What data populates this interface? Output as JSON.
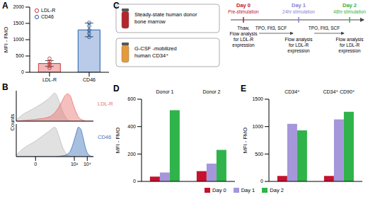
{
  "chart_data": [
    {
      "panel": "A",
      "type": "bar",
      "categories": [
        "LDL-R",
        "CD46"
      ],
      "values": [
        270,
        1300
      ],
      "error": [
        90,
        210
      ],
      "points": [
        [
          130,
          190,
          260,
          330,
          420
        ],
        [
          1080,
          1190,
          1290,
          1420,
          1520
        ]
      ],
      "colors": [
        "#f3b8b8",
        "#b9cbe8"
      ],
      "y_label": "MFI - FMO",
      "ylim": [
        0,
        2000
      ],
      "yticks": [
        0,
        500,
        1000,
        1500,
        2000
      ],
      "legend": "upper left"
    },
    {
      "panel": "B",
      "type": "area",
      "y_label": "Counts",
      "x": [
        -30,
        -10,
        0,
        10,
        30,
        60,
        100,
        200,
        300,
        500,
        700,
        1000,
        1500,
        2000,
        3000,
        5000,
        7000,
        10000,
        15000,
        20000,
        30000
      ],
      "xlim": [
        -30,
        30000
      ],
      "xticks": [
        {
          "value": 0,
          "label": "0"
        },
        {
          "value": 1000,
          "label": "10³"
        },
        {
          "value": 10000,
          "label": "10⁴"
        }
      ],
      "ylim": [
        0,
        100
      ],
      "tick_labels": "x",
      "subplots": [
        {
          "title": "LDL-R",
          "series": [
            {
              "color": "#bdbdbd",
              "values": [
                4,
                20,
                45,
                75,
                92,
                70,
                42,
                14,
                5,
                1,
                0,
                0,
                0,
                0,
                0,
                0,
                0,
                0,
                0,
                0,
                0
              ]
            },
            {
              "color": "#e8706f",
              "values": [
                0,
                2,
                6,
                14,
                28,
                45,
                62,
                85,
                90,
                82,
                64,
                44,
                26,
                15,
                7,
                3,
                1,
                0,
                0,
                0,
                0
              ]
            }
          ]
        },
        {
          "title": "CD46",
          "series": [
            {
              "color": "#bdbdbd",
              "values": [
                5,
                22,
                48,
                78,
                90,
                66,
                38,
                12,
                4,
                1,
                0,
                0,
                0,
                0,
                0,
                0,
                0,
                0,
                0,
                0,
                0
              ]
            },
            {
              "color": "#3f74b8",
              "values": [
                0,
                0,
                0,
                0,
                0,
                1,
                2,
                4,
                8,
                18,
                32,
                52,
                76,
                90,
                86,
                55,
                30,
                12,
                4,
                1,
                0
              ]
            }
          ]
        }
      ]
    },
    {
      "panel": "D",
      "type": "bar",
      "categories": [
        "Donor 1",
        "Donor 2"
      ],
      "series": [
        {
          "name": "Day 0",
          "color": "#c4122f",
          "values": [
            35,
            75
          ]
        },
        {
          "name": "Day 1",
          "color": "#a597da",
          "values": [
            65,
            130
          ]
        },
        {
          "name": "Day 2",
          "color": "#2fb34a",
          "values": [
            520,
            230
          ]
        }
      ],
      "y_label": "MFI - FMO",
      "ylim": [
        0,
        600
      ],
      "yticks": [
        0,
        200,
        400,
        600
      ],
      "legend": "bottom"
    },
    {
      "panel": "E",
      "type": "bar",
      "categories": [
        "CD34⁺",
        "CD34⁺ CD90⁺"
      ],
      "series": [
        {
          "name": "Day 0",
          "color": "#c4122f",
          "values": [
            100,
            100
          ]
        },
        {
          "name": "Day 1",
          "color": "#a597da",
          "values": [
            1050,
            1130
          ]
        },
        {
          "name": "Day 2",
          "color": "#2fb34a",
          "values": [
            930,
            1270
          ]
        }
      ],
      "y_label": "MFI - FMO",
      "ylim": [
        0,
        1500
      ],
      "yticks": [
        0,
        500,
        1000,
        1500
      ]
    }
  ],
  "diagram": {
    "panel": "C",
    "sources": [
      {
        "lines": [
          "Steady-state human donor",
          "bone marrow"
        ],
        "color": "#b3262b"
      },
      {
        "lines": [
          "G-CSF -mobilized",
          "human CD34⁺"
        ],
        "color": "#e59b3a"
      }
    ],
    "timeline": [
      {
        "day": "Day 0",
        "label": "Pre-stimulation",
        "color": "#c4122f",
        "notes": [
          "Thaw,",
          "Flow analysis",
          "for LDL-R",
          "expression"
        ]
      },
      {
        "day": "Day 1",
        "label": "24hr stimulation",
        "color": "#8c7fd0",
        "notes": [
          "Flow analysis",
          "for LDL-R",
          "expression"
        ]
      },
      {
        "day": "Day 2",
        "label": "48hr stimulation",
        "color": "#2fb34a",
        "notes": [
          "Flow analysis",
          "for LDL-R",
          "expression"
        ]
      }
    ],
    "treatments": [
      "TPO, Flt3, SCF",
      "TPO, Flt3, SCF"
    ]
  }
}
